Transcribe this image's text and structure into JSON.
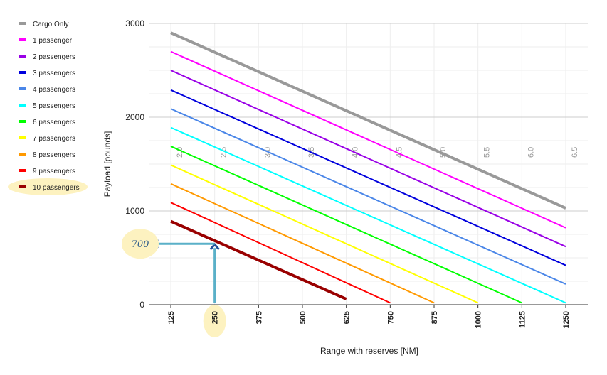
{
  "chart_data": {
    "type": "line",
    "xlabel": "Range with reserves [NM]",
    "ylabel": "Payload [pounds]",
    "xlim": [
      125,
      1250
    ],
    "ylim": [
      0,
      3000
    ],
    "x_ticks": [
      125,
      250,
      375,
      500,
      625,
      750,
      875,
      1000,
      1125,
      1250
    ],
    "y_ticks": [
      0,
      1000,
      2000,
      3000
    ],
    "series": [
      {
        "name": "Cargo Only",
        "color": "#999999",
        "points": [
          [
            125,
            2900
          ],
          [
            1250,
            1030
          ]
        ]
      },
      {
        "name": "1 passenger",
        "color": "#ff00ff",
        "points": [
          [
            125,
            2700
          ],
          [
            1250,
            820
          ]
        ]
      },
      {
        "name": "2 passengers",
        "color": "#9900e6",
        "points": [
          [
            125,
            2500
          ],
          [
            1250,
            620
          ]
        ]
      },
      {
        "name": "3 passengers",
        "color": "#0000dd",
        "points": [
          [
            125,
            2290
          ],
          [
            1250,
            420
          ]
        ]
      },
      {
        "name": "4 passengers",
        "color": "#4a86e8",
        "points": [
          [
            125,
            2090
          ],
          [
            1250,
            220
          ]
        ]
      },
      {
        "name": "5 passengers",
        "color": "#00ffff",
        "points": [
          [
            125,
            1890
          ],
          [
            1250,
            20
          ]
        ]
      },
      {
        "name": "6 passengers",
        "color": "#00ff00",
        "points": [
          [
            125,
            1690
          ],
          [
            1125,
            20
          ]
        ]
      },
      {
        "name": "7 passengers",
        "color": "#ffff00",
        "points": [
          [
            125,
            1490
          ],
          [
            1000,
            20
          ]
        ]
      },
      {
        "name": "8 passengers",
        "color": "#ff9900",
        "points": [
          [
            125,
            1290
          ],
          [
            875,
            20
          ]
        ]
      },
      {
        "name": "9 passengers",
        "color": "#ff0000",
        "points": [
          [
            125,
            1090
          ],
          [
            750,
            20
          ]
        ]
      },
      {
        "name": "10 passengers",
        "color": "#990000",
        "points": [
          [
            125,
            890
          ],
          [
            625,
            60
          ]
        ]
      }
    ],
    "hour_marks": [
      {
        "label": "2.0",
        "x": 125
      },
      {
        "label": "2.5",
        "x": 250
      },
      {
        "label": "3.0",
        "x": 375
      },
      {
        "label": "3.5",
        "x": 500
      },
      {
        "label": "4.0",
        "x": 625
      },
      {
        "label": "4.5",
        "x": 750
      },
      {
        "label": "5.0",
        "x": 875
      },
      {
        "label": "5.5",
        "x": 1000
      },
      {
        "label": "6.0",
        "x": 1125
      },
      {
        "label": "6.5",
        "x": 1250
      }
    ],
    "annotation": {
      "text": "700",
      "x": 250,
      "y": 650,
      "highlight_series": "10 passengers",
      "highlight_x_tick": 250
    }
  }
}
